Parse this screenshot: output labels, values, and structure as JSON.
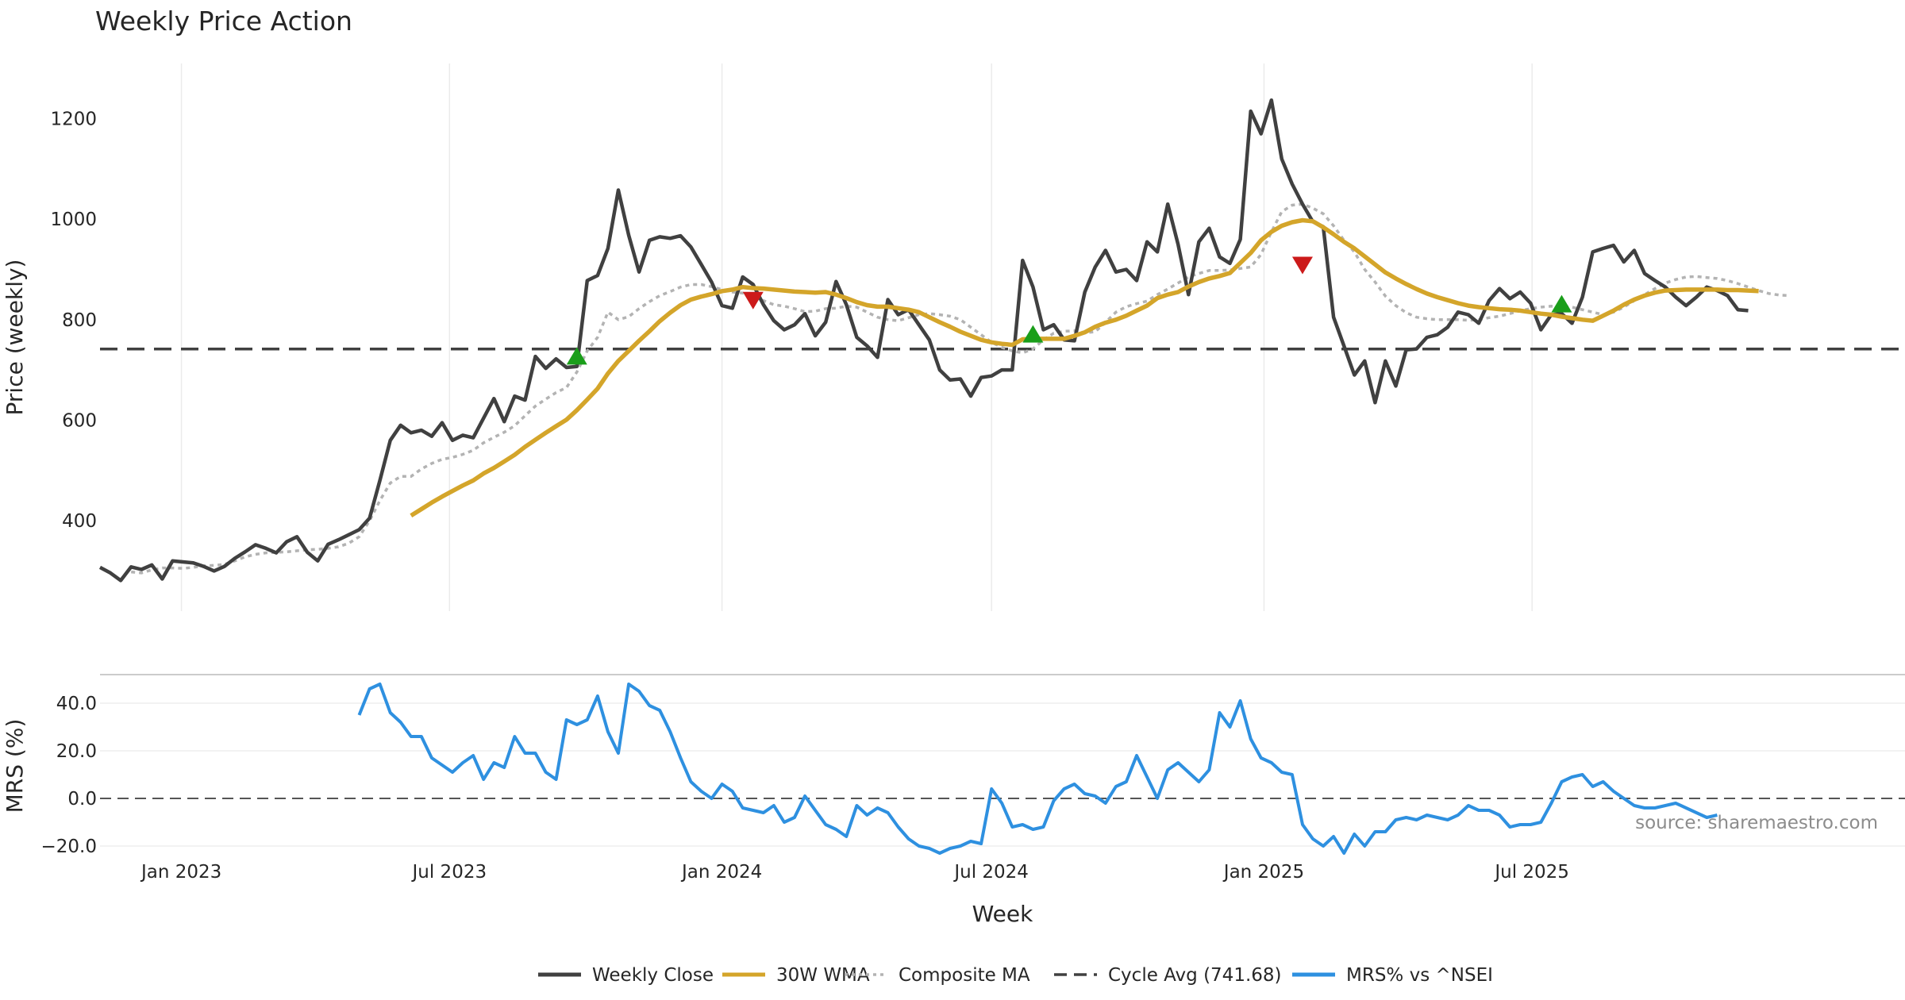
{
  "chart_data": {
    "type": "line",
    "title": "Weekly Price Action",
    "xlabel": "Week",
    "source": "source: sharemaestro.com",
    "x_ticks": [
      "Jan 2023",
      "Jul 2023",
      "Jan 2024",
      "Jul 2024",
      "Jan 2025",
      "Jul 2025"
    ],
    "x_range": [
      "2022-11-07",
      "2025-11-24"
    ],
    "price_panel": {
      "ylabel": "Price (weekly)",
      "ylim": [
        220,
        1310
      ],
      "yticks": [
        400,
        600,
        800,
        1000,
        1200
      ],
      "cycle_avg": 741.68,
      "series": {
        "weekly_close": {
          "name": "Weekly Close",
          "color": "#404040",
          "start_week": 0,
          "values": [
            307,
            296,
            281,
            308,
            303,
            312,
            284,
            320,
            318,
            316,
            309,
            300,
            309,
            325,
            338,
            352,
            345,
            336,
            358,
            368,
            337,
            320,
            353,
            362,
            372,
            382,
            405,
            480,
            560,
            590,
            575,
            580,
            568,
            595,
            560,
            570,
            565,
            604,
            643,
            597,
            648,
            640,
            727,
            703,
            722,
            705,
            707,
            878,
            888,
            942,
            1058,
            968,
            895,
            958,
            965,
            962,
            967,
            945,
            910,
            875,
            828,
            823,
            885,
            870,
            830,
            798,
            780,
            790,
            812,
            768,
            795,
            876,
            830,
            765,
            748,
            725,
            840,
            810,
            820,
            790,
            760,
            700,
            680,
            682,
            648,
            685,
            688,
            700,
            700,
            918,
            865,
            780,
            790,
            760,
            758,
            855,
            905,
            938,
            895,
            900,
            878,
            955,
            935,
            1030,
            950,
            850,
            955,
            982,
            925,
            912,
            960,
            1215,
            1170,
            1237,
            1120,
            1070,
            1030,
            995,
            985,
            805,
            748,
            690,
            718,
            635,
            718,
            668,
            740,
            742,
            765,
            770,
            785,
            815,
            810,
            793,
            838,
            862,
            842,
            855,
            833,
            780,
            810,
            812,
            793,
            845,
            935,
            942,
            948,
            915,
            938,
            892,
            878,
            865,
            845,
            828,
            845,
            865,
            858,
            848,
            820,
            818
          ]
        },
        "wma30": {
          "name": "30W WMA",
          "color": "#d4a52a",
          "start_week": 30,
          "values": [
            410,
            423,
            436,
            448,
            459,
            470,
            480,
            494,
            505,
            518,
            531,
            547,
            561,
            575,
            588,
            601,
            620,
            641,
            663,
            693,
            718,
            738,
            758,
            777,
            797,
            814,
            829,
            840,
            846,
            851,
            857,
            860,
            865,
            863,
            862,
            860,
            858,
            856,
            855,
            854,
            855,
            850,
            843,
            835,
            829,
            826,
            826,
            823,
            820,
            815,
            805,
            795,
            786,
            776,
            768,
            760,
            755,
            752,
            750,
            761,
            762,
            762,
            762,
            762,
            768,
            775,
            786,
            794,
            800,
            808,
            818,
            828,
            843,
            850,
            855,
            866,
            875,
            882,
            887,
            893,
            913,
            933,
            958,
            975,
            987,
            994,
            998,
            996,
            984,
            970,
            955,
            942,
            926,
            910,
            894,
            882,
            871,
            861,
            852,
            845,
            839,
            833,
            828,
            825,
            823,
            821,
            820,
            818,
            815,
            812,
            810,
            806,
            803,
            800,
            798,
            808,
            818,
            830,
            840,
            848,
            854,
            858,
            859,
            860,
            860,
            860,
            860,
            859,
            859,
            858,
            857
          ]
        },
        "composite_ma": {
          "name": "Composite MA",
          "color": "#b3b3b3",
          "start_week": 3,
          "values": [
            298,
            296,
            302,
            306,
            306,
            305,
            307,
            310,
            311,
            313,
            320,
            328,
            333,
            336,
            337,
            338,
            340,
            342,
            343,
            345,
            348,
            355,
            368,
            400,
            440,
            475,
            488,
            488,
            503,
            514,
            522,
            526,
            532,
            540,
            555,
            566,
            576,
            589,
            609,
            628,
            642,
            655,
            665,
            696,
            738,
            765,
            815,
            800,
            806,
            822,
            836,
            848,
            856,
            865,
            870,
            870,
            866,
            860,
            855,
            853,
            847,
            838,
            830,
            827,
            822,
            816,
            817,
            822,
            823,
            827,
            825,
            815,
            805,
            800,
            798,
            804,
            810,
            812,
            810,
            807,
            800,
            785,
            770,
            755,
            745,
            738,
            734,
            742,
            760,
            773,
            777,
            778,
            774,
            776,
            795,
            815,
            826,
            832,
            837,
            850,
            861,
            873,
            885,
            892,
            898,
            898,
            899,
            902,
            905,
            930,
            975,
            1015,
            1028,
            1030,
            1022,
            1011,
            987,
            958,
            935,
            900,
            875,
            847,
            828,
            814,
            805,
            802,
            800,
            800,
            800,
            799,
            800,
            804,
            807,
            812,
            818,
            822,
            825,
            827,
            826,
            825,
            820,
            815,
            810,
            815,
            825,
            838,
            850,
            862,
            873,
            880,
            885,
            886,
            884,
            882,
            878,
            872,
            865,
            858,
            852,
            849,
            848
          ]
        },
        "signals_up": [
          {
            "week": 46,
            "price": 728
          },
          {
            "week": 90,
            "price": 772
          },
          {
            "week": 141,
            "price": 832
          }
        ],
        "signals_down": [
          {
            "week": 63,
            "price": 838
          },
          {
            "week": 116,
            "price": 908
          }
        ]
      }
    },
    "mrs_panel": {
      "ylabel": "MRS (%)",
      "ylim": [
        -24,
        52
      ],
      "yticks": [
        40.0,
        20.0,
        0.0,
        -20.0
      ],
      "ytick_labels": [
        "40.0",
        "20.0",
        "0.0",
        "−20.0"
      ],
      "series": {
        "name": "MRS% vs ^NSEI",
        "color": "#2e90e0",
        "start_week": 25,
        "values": [
          35,
          46,
          48,
          36,
          32,
          26,
          26,
          17,
          14,
          11,
          15,
          18,
          8,
          15,
          13,
          26,
          19,
          19,
          11,
          8,
          33,
          31,
          33,
          43,
          28,
          19,
          48,
          45,
          39,
          37,
          28,
          17,
          7,
          3,
          0,
          6,
          3,
          -4,
          -5,
          -6,
          -3,
          -10,
          -8,
          1,
          -5,
          -11,
          -13,
          -16,
          -3,
          -7,
          -4,
          -6,
          -12,
          -17,
          -20,
          -21,
          -23,
          -21,
          -20,
          -18,
          -19,
          4,
          -2,
          -12,
          -11,
          -13,
          -12,
          -1,
          4,
          6,
          2,
          1,
          -2,
          5,
          7,
          18,
          9,
          0,
          12,
          15,
          11,
          7,
          12,
          36,
          30,
          41,
          25,
          17,
          15,
          11,
          10,
          -11,
          -17,
          -20,
          -16,
          -23,
          -15,
          -20,
          -14,
          -14,
          -9,
          -8,
          -9,
          -7,
          -8,
          -9,
          -7,
          -3,
          -5,
          -5,
          -7,
          -12,
          -11,
          -11,
          -10,
          -2,
          7,
          9,
          10,
          5,
          7,
          3,
          0,
          -3,
          -4,
          -4,
          -3,
          -2,
          -4,
          -6,
          -8,
          -7
        ]
      }
    },
    "legend": {
      "placement": "bottom-center",
      "entries": [
        {
          "label": "Weekly Close",
          "color": "#404040",
          "style": "solid"
        },
        {
          "label": "30W WMA",
          "color": "#d4a52a",
          "style": "solid"
        },
        {
          "label": "Composite MA",
          "color": "#b3b3b3",
          "style": "dotted"
        },
        {
          "label": "Cycle Avg (741.68)",
          "color": "#404040",
          "style": "dashed"
        },
        {
          "label": "MRS% vs ^NSEI",
          "color": "#2e90e0",
          "style": "solid"
        }
      ]
    }
  }
}
